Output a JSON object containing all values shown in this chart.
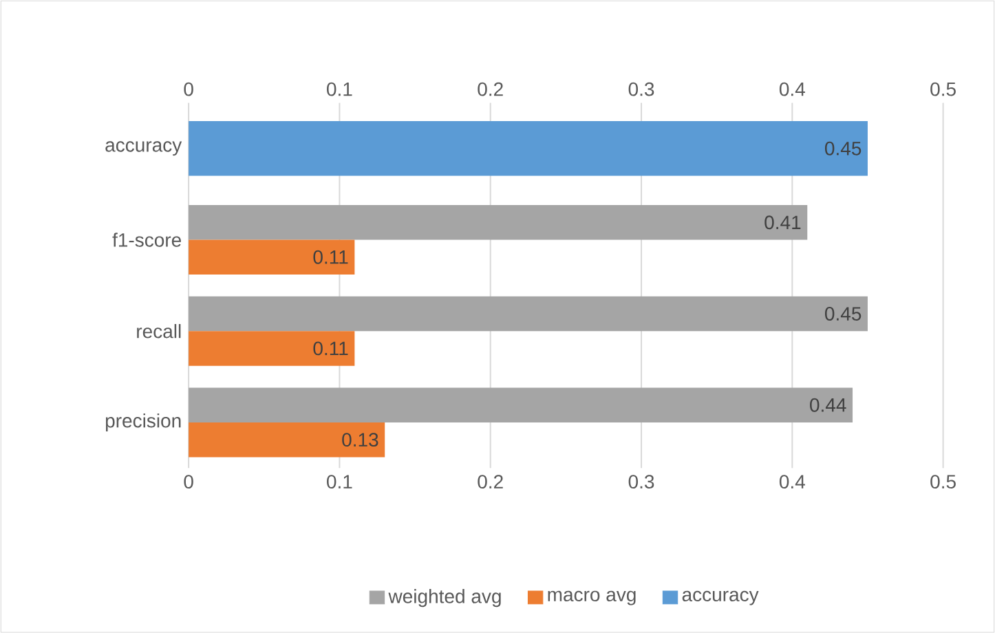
{
  "chart_data": {
    "type": "bar",
    "orientation": "horizontal",
    "categories": [
      "accuracy",
      "f1-score",
      "recall",
      "precision"
    ],
    "series": [
      {
        "name": "weighted avg",
        "color": "#a5a5a5",
        "values": [
          null,
          0.41,
          0.45,
          0.44
        ]
      },
      {
        "name": "macro avg",
        "color": "#ed7d31",
        "values": [
          null,
          0.11,
          0.11,
          0.13
        ]
      },
      {
        "name": "accuracy",
        "color": "#5b9bd5",
        "axis": "x2",
        "values": [
          0.45,
          null,
          null,
          null
        ]
      }
    ],
    "xlim": [
      0,
      0.5
    ],
    "xticks": [
      0,
      0.1,
      0.2,
      0.3,
      0.4,
      0.5
    ],
    "x2lim": [
      0,
      0.5
    ],
    "x2ticks": [
      0,
      0.1,
      0.2,
      0.3,
      0.4,
      0.5
    ],
    "grid": "x",
    "legend": "bottom",
    "data_labels": true
  }
}
